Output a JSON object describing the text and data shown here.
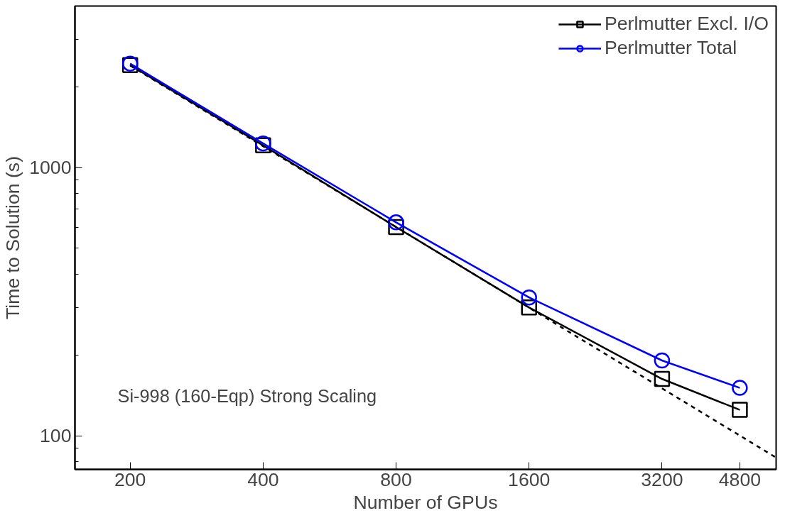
{
  "chart_data": {
    "type": "line",
    "xlabel": "Number of GPUs",
    "ylabel": "Time to Solution (s)",
    "log": "xy",
    "xlim": [
      150,
      5800
    ],
    "ylim": [
      75,
      4000
    ],
    "xticks": [
      200,
      400,
      800,
      1600,
      3200,
      4800
    ],
    "yticks": [
      {
        "value": 80,
        "label": null
      },
      {
        "value": 90,
        "label": null
      },
      100,
      {
        "value": 200,
        "label": null
      },
      {
        "value": 300,
        "label": null
      },
      {
        "value": 400,
        "label": null
      },
      {
        "value": 500,
        "label": null
      },
      {
        "value": 600,
        "label": null
      },
      {
        "value": 700,
        "label": null
      },
      {
        "value": 800,
        "label": null
      },
      {
        "value": 900,
        "label": null
      },
      1000,
      {
        "value": 2000,
        "label": null
      },
      {
        "value": 3000,
        "label": null
      },
      {
        "value": 4000,
        "label": null
      }
    ],
    "x": [
      200,
      400,
      800,
      1600,
      3200,
      4800
    ],
    "series": [
      {
        "name": "Perlmutter Excl. I/O",
        "color": "#000000",
        "marker": "square",
        "values": [
          2410,
          1210,
          600,
          301,
          163,
          125
        ]
      },
      {
        "name": "Perlmutter Total",
        "color": "#0000ff",
        "marker": "circle",
        "values": [
          2440,
          1230,
          625,
          328,
          191,
          151
        ]
      },
      {
        "type": "line",
        "color": "#000000",
        "marker": "none",
        "line_style": "dashed",
        "x": [
          200,
          5800
        ],
        "values": [
          2400,
          83
        ]
      }
    ],
    "annotations": [
      "Si-998 (160-Eqp) Strong Scaling"
    ],
    "legend": "top right",
    "grid": false
  }
}
